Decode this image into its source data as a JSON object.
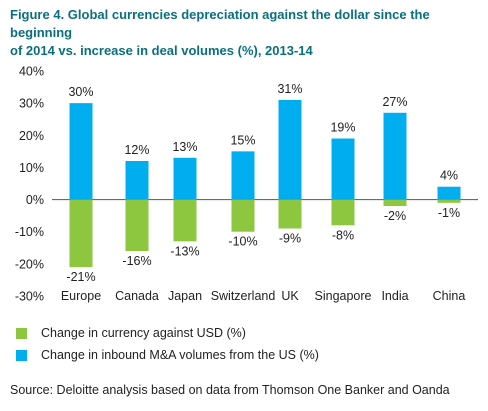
{
  "title_lines": [
    "Figure 4. Global currencies depreciation against the dollar since the beginning",
    "of 2014 vs. increase in deal volumes (%), 2013-14"
  ],
  "source": "Source: Deloitte analysis based on data from Thomson One Banker and Oanda",
  "colors": {
    "green": "#8dc63f",
    "blue": "#00aeef",
    "title": "#0a6f7e"
  },
  "chart_data": {
    "type": "bar",
    "categories": [
      "Europe",
      "Canada",
      "Japan",
      "Switzerland",
      "UK",
      "Singapore",
      "India",
      "China"
    ],
    "series": [
      {
        "name": "Change in currency against USD (%)",
        "color": "#8dc63f",
        "values": [
          -21,
          -16,
          -13,
          -10,
          -9,
          -8,
          -2,
          -1
        ],
        "labels": [
          "-21%",
          "-16%",
          "-13%",
          "-10%",
          "-9%",
          "-8%",
          "-2%",
          "-1%"
        ]
      },
      {
        "name": "Change in inbound M&A volumes from the US (%)",
        "color": "#00aeef",
        "values": [
          30,
          12,
          13,
          15,
          31,
          19,
          27,
          4
        ],
        "labels": [
          "30%",
          "12%",
          "13%",
          "15%",
          "31%",
          "19%",
          "27%",
          "4%"
        ]
      }
    ],
    "yticks": [
      "40%",
      "30%",
      "20%",
      "10%",
      "0%",
      "-10%",
      "-20%",
      "-30%"
    ],
    "ytick_values": [
      40,
      30,
      20,
      10,
      0,
      -10,
      -20,
      -30
    ],
    "ylim": [
      -30,
      40
    ],
    "grid": false,
    "legend_position": "bottom-left",
    "title": "Figure 4. Global currencies depreciation against the dollar since the beginning of 2014 vs. increase in deal volumes (%), 2013-14"
  }
}
